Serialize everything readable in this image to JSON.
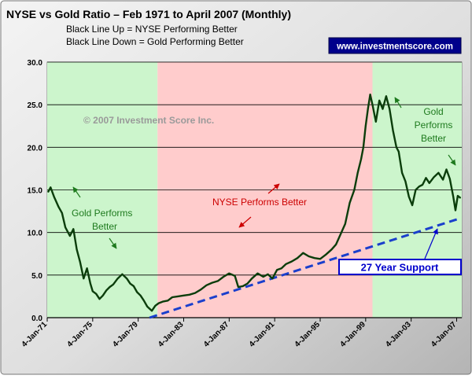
{
  "chart_data": {
    "type": "line",
    "title": "NYSE vs Gold Ratio – Feb 1971 to April 2007 (Monthly)",
    "subtitle_lines": [
      "Black Line Up = NYSE Performing Better",
      "Black Line Down = Gold Performing Better"
    ],
    "badge": "www.investmentscore.com",
    "copyright": "© 2007 Investment Score Inc.",
    "ylim": [
      0,
      30
    ],
    "y_ticks": [
      "0.0",
      "5.0",
      "10.0",
      "15.0",
      "20.0",
      "25.0",
      "30.0"
    ],
    "xlim": [
      1971.0,
      2007.45
    ],
    "x_ticks": [
      {
        "label": "4-Jan-71",
        "year": 1971.0
      },
      {
        "label": "4-Jan-75",
        "year": 1975.0
      },
      {
        "label": "4-Jan-79",
        "year": 1979.0
      },
      {
        "label": "4-Jan-83",
        "year": 1983.0
      },
      {
        "label": "4-Jan-87",
        "year": 1987.0
      },
      {
        "label": "4-Jan-91",
        "year": 1991.0
      },
      {
        "label": "4-Jan-95",
        "year": 1995.0
      },
      {
        "label": "4-Jan-99",
        "year": 1999.0
      },
      {
        "label": "4-Jan-03",
        "year": 2003.0
      },
      {
        "label": "4-Jan-07",
        "year": 2007.0
      }
    ],
    "grid": true,
    "regions": [
      {
        "from": 1971.0,
        "to": 1980.7,
        "color": "#ccf5cc"
      },
      {
        "from": 1980.7,
        "to": 1999.6,
        "color": "#ffcccc"
      },
      {
        "from": 1999.6,
        "to": 2007.45,
        "color": "#ccf5cc"
      }
    ],
    "series": [
      {
        "line_color": "#0b3d0b",
        "x": [
          1971.1,
          1971.3,
          1971.6,
          1972.0,
          1972.3,
          1972.6,
          1973.0,
          1973.3,
          1973.6,
          1973.9,
          1974.2,
          1974.5,
          1974.8,
          1975.0,
          1975.3,
          1975.6,
          1975.9,
          1976.2,
          1976.5,
          1976.8,
          1977.2,
          1977.6,
          1978.0,
          1978.3,
          1978.6,
          1978.9,
          1979.2,
          1979.5,
          1979.8,
          1980.2,
          1980.5,
          1980.8,
          1981.2,
          1981.6,
          1982.0,
          1982.5,
          1983.0,
          1983.5,
          1984.0,
          1984.5,
          1985.0,
          1985.5,
          1986.0,
          1986.5,
          1987.0,
          1987.5,
          1987.8,
          1988.2,
          1988.6,
          1989.0,
          1989.5,
          1990.0,
          1990.4,
          1990.8,
          1991.2,
          1991.6,
          1992.0,
          1992.5,
          1993.0,
          1993.5,
          1994.0,
          1994.5,
          1995.0,
          1995.5,
          1996.0,
          1996.4,
          1996.8,
          1997.2,
          1997.6,
          1998.0,
          1998.3,
          1998.6,
          1998.8,
          1999.0,
          1999.2,
          1999.4,
          1999.6,
          1999.9,
          2000.2,
          2000.5,
          2000.8,
          2001.1,
          2001.4,
          2001.7,
          2001.9,
          2002.2,
          2002.5,
          2002.8,
          2003.1,
          2003.4,
          2003.7,
          2004.0,
          2004.3,
          2004.6,
          2005.0,
          2005.4,
          2005.8,
          2006.1,
          2006.4,
          2006.7,
          2006.9,
          2007.1,
          2007.3
        ],
        "values": [
          14.8,
          15.3,
          14.2,
          13.0,
          12.3,
          10.6,
          9.6,
          10.4,
          8.0,
          6.5,
          4.6,
          5.8,
          4.0,
          3.1,
          2.8,
          2.2,
          2.6,
          3.2,
          3.6,
          3.9,
          4.6,
          5.1,
          4.6,
          4.0,
          3.7,
          3.0,
          2.6,
          2.0,
          1.3,
          0.8,
          1.4,
          1.7,
          1.9,
          2.0,
          2.4,
          2.5,
          2.6,
          2.7,
          2.9,
          3.3,
          3.8,
          4.1,
          4.3,
          4.8,
          5.2,
          4.9,
          3.6,
          3.7,
          4.0,
          4.6,
          5.2,
          4.8,
          5.1,
          4.6,
          5.6,
          5.8,
          6.3,
          6.6,
          7.0,
          7.6,
          7.2,
          7.0,
          6.9,
          7.4,
          8.0,
          8.6,
          9.8,
          11.0,
          13.5,
          15.0,
          17.0,
          18.6,
          20.0,
          22.5,
          24.5,
          26.2,
          25.0,
          23.0,
          25.5,
          24.5,
          26.0,
          24.5,
          22.0,
          20.0,
          19.5,
          17.0,
          16.0,
          14.2,
          13.2,
          15.0,
          15.4,
          15.6,
          16.4,
          15.8,
          16.5,
          17.0,
          16.2,
          17.4,
          16.3,
          14.2,
          12.6,
          14.3,
          14.1
        ]
      }
    ],
    "support_line": {
      "label": "27 Year Support",
      "start": {
        "year": 1980.0,
        "value": 0.0
      },
      "end": {
        "year": 2007.4,
        "value": 11.7
      }
    },
    "annotations": [
      {
        "text": "NYSE Performs Better",
        "color": "#cc0000"
      },
      {
        "text": "Gold Performs Better",
        "color": "#1e7a1e"
      },
      {
        "text": "Gold Performs Better",
        "color": "#1e7a1e"
      }
    ]
  }
}
